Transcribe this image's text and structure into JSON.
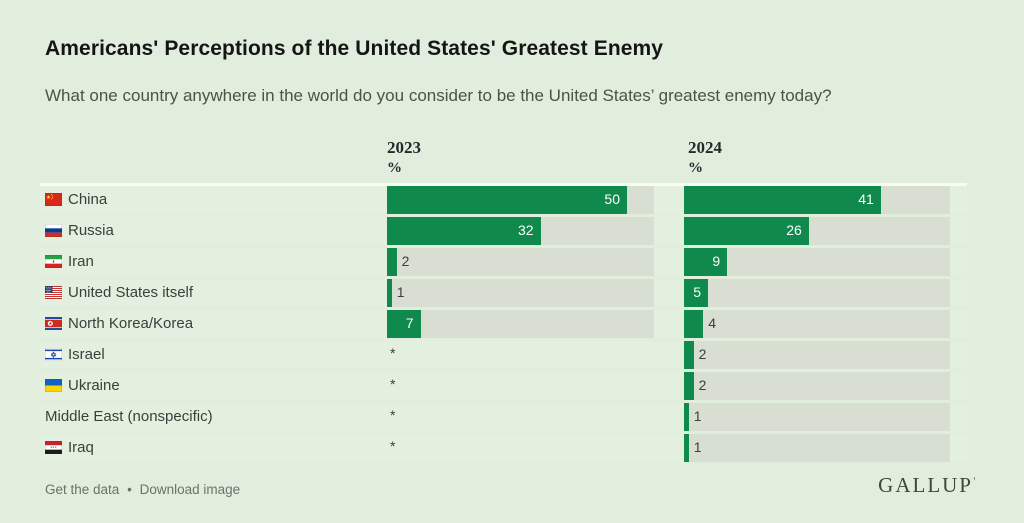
{
  "page": {
    "title": "Americans' Perceptions of the United States' Greatest Enemy",
    "subtitle": "What one country anywhere in the world do you consider to be the United States’ greatest enemy today?",
    "footer": {
      "get_data_label": "Get the data",
      "separator": "•",
      "download_label": "Download image",
      "brand": "GALLUP",
      "brand_mark": "’"
    }
  },
  "chart_data": {
    "type": "bar",
    "orientation": "horizontal",
    "title": "Americans' Perceptions of the United States' Greatest Enemy",
    "question": "What one country anywhere in the world do you consider to be the United States’ greatest enemy today?",
    "columns": [
      {
        "label": "2023",
        "unit": "%"
      },
      {
        "label": "2024",
        "unit": "%"
      }
    ],
    "xlim": [
      0,
      56
    ],
    "grid": false,
    "legend": "none",
    "colors": {
      "bar_green": "#0f8a4c",
      "bar_track": "#d8ded2",
      "background": "#e1eedd",
      "row_background": "#e3efdf"
    },
    "rows": [
      {
        "label": "China",
        "flag": "china",
        "values": [
          "50",
          "41"
        ]
      },
      {
        "label": "Russia",
        "flag": "russia",
        "values": [
          "32",
          "26"
        ]
      },
      {
        "label": "Iran",
        "flag": "iran",
        "values": [
          "2",
          "9"
        ]
      },
      {
        "label": "United States itself",
        "flag": "usa",
        "values": [
          "1",
          "5"
        ]
      },
      {
        "label": "North Korea/Korea",
        "flag": "north-korea",
        "values": [
          "7",
          "4"
        ]
      },
      {
        "label": "Israel",
        "flag": "israel",
        "values": [
          "*",
          "2"
        ]
      },
      {
        "label": "Ukraine",
        "flag": "ukraine",
        "values": [
          "*",
          "2"
        ]
      },
      {
        "label": "Middle East (nonspecific)",
        "flag": null,
        "values": [
          "*",
          "1"
        ]
      },
      {
        "label": "Iraq",
        "flag": "iraq",
        "values": [
          "*",
          "1"
        ]
      }
    ]
  }
}
